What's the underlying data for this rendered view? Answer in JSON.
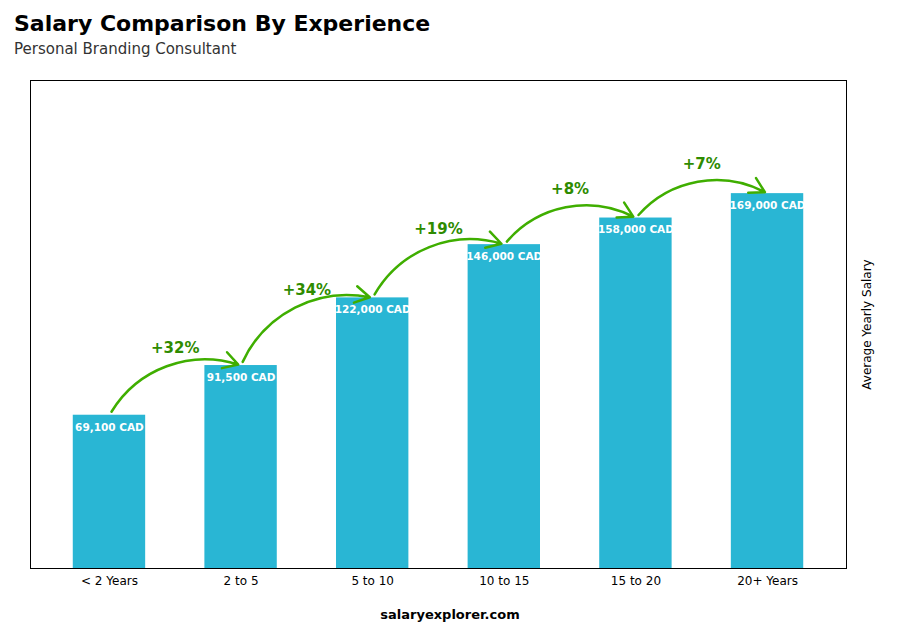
{
  "chart_data": {
    "type": "bar",
    "title": "Salary Comparison By Experience",
    "subtitle": "Personal Branding Consultant",
    "caption": "salaryexplorer.com",
    "ylabel": "Average Yearly Salary",
    "categories": [
      "< 2 Years",
      "2 to 5",
      "5 to 10",
      "10 to 15",
      "15 to 20",
      "20+ Years"
    ],
    "values": [
      69100,
      91500,
      122000,
      146000,
      158000,
      169000
    ],
    "value_labels": [
      "69,100 CAD",
      "91,500 CAD",
      "122,000 CAD",
      "146,000 CAD",
      "158,000 CAD",
      "169,000 CAD"
    ],
    "data_labels": true,
    "annotations": [
      "+32%",
      "+34%",
      "+19%",
      "+8%",
      "+7%"
    ],
    "color": "#29b6d4",
    "ylim": [
      0,
      220000
    ],
    "tick_labels": "x",
    "grid": false
  }
}
